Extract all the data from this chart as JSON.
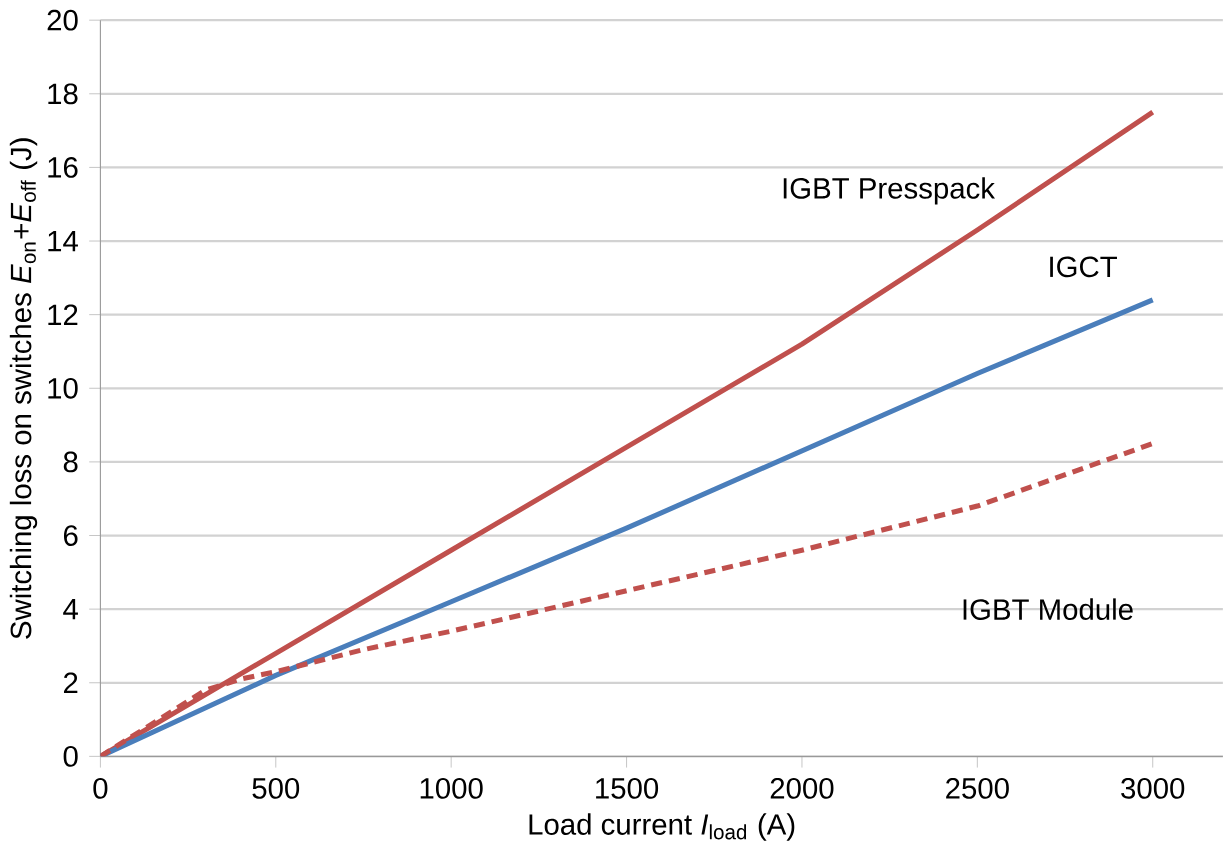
{
  "chart_data": {
    "type": "line",
    "xlabel": "Load current *I*$_{load}$ (A)",
    "ylabel": "Switching loss on switches *E*$_{on}$+*E*$_{off}$ (J)",
    "xlim": [
      0,
      3200
    ],
    "ylim": [
      0,
      20
    ],
    "xticks": [
      0,
      500,
      1000,
      1500,
      2000,
      2500,
      3000
    ],
    "yticks": [
      0,
      2,
      4,
      6,
      8,
      10,
      12,
      14,
      16,
      18,
      20
    ],
    "grid": "y",
    "series": [
      {
        "name": "IGBT Presspack",
        "color": "#c0504d",
        "line_style": "solid",
        "x": [
          0,
          500,
          1000,
          1500,
          2000,
          2500,
          3000
        ],
        "values": [
          0,
          2.8,
          5.6,
          8.4,
          11.2,
          14.3,
          17.5
        ]
      },
      {
        "name": "IGCT",
        "color": "#4a7ebb",
        "line_style": "solid",
        "x": [
          0,
          500,
          1000,
          1500,
          2000,
          2500,
          3000
        ],
        "values": [
          0,
          2.2,
          4.2,
          6.2,
          8.3,
          10.4,
          12.4
        ]
      },
      {
        "name": "IGBT Module",
        "color": "#c0504d",
        "line_style": "dashed",
        "x": [
          0,
          150,
          300,
          400,
          500,
          750,
          1000,
          1500,
          2000,
          2500,
          3000
        ],
        "values": [
          0,
          0.9,
          1.8,
          2.1,
          2.3,
          2.9,
          3.4,
          4.5,
          5.6,
          6.8,
          8.5
        ]
      }
    ]
  }
}
